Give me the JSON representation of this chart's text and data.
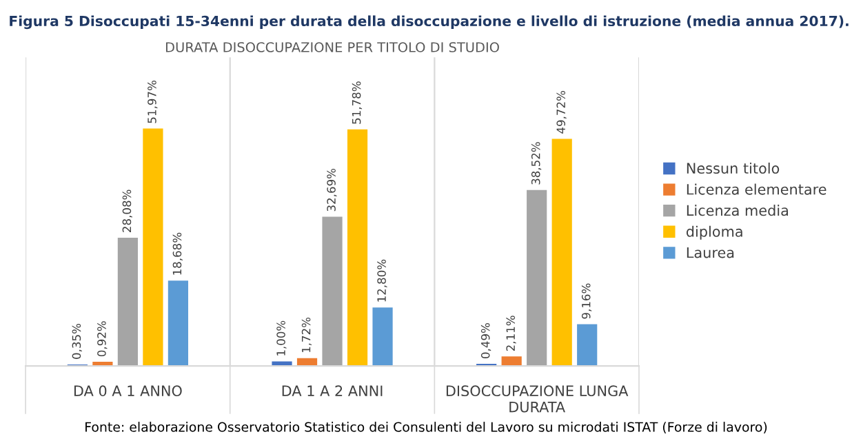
{
  "chart_data": {
    "type": "bar",
    "title": "Figura 5 Disoccupati 15-34enni per durata della disoccupazione e livello di istruzione (media annua 2017).",
    "subtitle": "DURATA DISOCCUPAZIONE PER TITOLO DI STUDIO",
    "categories": [
      "DA 0 A 1 ANNO",
      "DA 1 A 2 ANNI",
      "DISOCCUPAZIONE LUNGA DURATA"
    ],
    "series": [
      {
        "name": "Nessun titolo",
        "color": "#4472c4",
        "values": [
          0.35,
          1.0,
          0.49
        ],
        "value_labels": [
          "0,35%",
          "1,00%",
          "0,49%"
        ]
      },
      {
        "name": "Licenza elementare",
        "color": "#ed7d31",
        "values": [
          0.92,
          1.72,
          2.11
        ],
        "value_labels": [
          "0,92%",
          "1,72%",
          "2,11%"
        ]
      },
      {
        "name": "Licenza media",
        "color": "#a5a5a5",
        "values": [
          28.08,
          32.69,
          38.52
        ],
        "value_labels": [
          "28,08%",
          "32,69%",
          "38,52%"
        ]
      },
      {
        "name": "diploma",
        "color": "#ffc000",
        "values": [
          51.97,
          51.78,
          49.72
        ],
        "value_labels": [
          "51,97%",
          "51,78%",
          "49,72%"
        ]
      },
      {
        "name": "Laurea",
        "color": "#5b9bd5",
        "values": [
          18.68,
          12.8,
          9.16
        ],
        "value_labels": [
          "18,68%",
          "12,80%",
          "9,16%"
        ]
      }
    ],
    "grid": "x",
    "legend": "right",
    "tick_labels": "x",
    "annotations": [
      "Fonte: elaborazione Osservatorio Statistico dei Consulenti del Lavoro su microdati ISTAT (Forze di lavoro)"
    ]
  }
}
